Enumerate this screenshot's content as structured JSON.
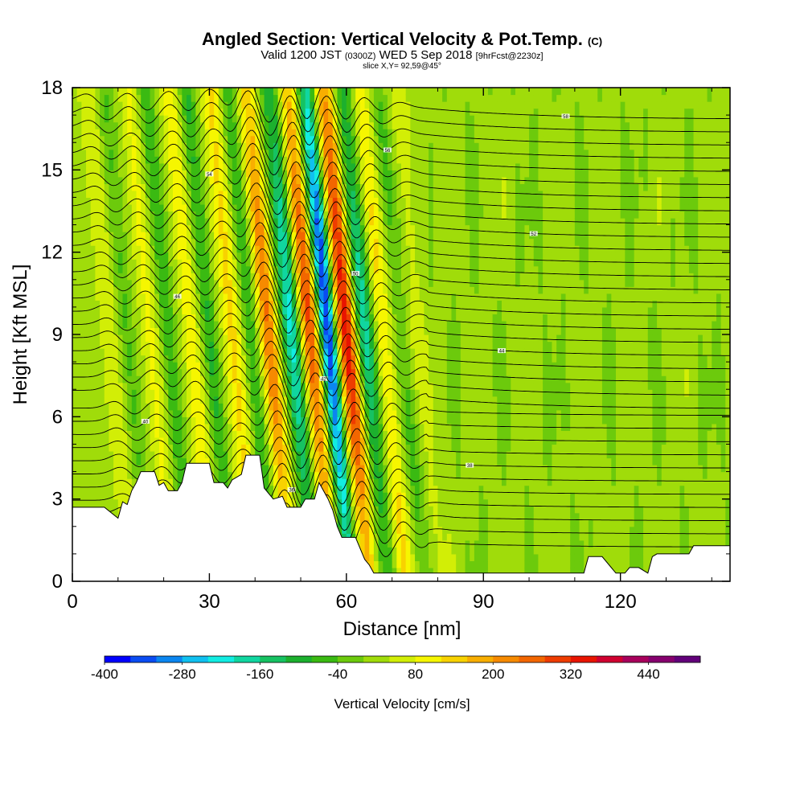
{
  "title": {
    "main": "Angled Section: Vertical Velocity & Pot.Temp.",
    "main_suffix": "(C)",
    "valid_prefix": "Valid 1200 JST",
    "valid_z": "(0300Z)",
    "valid_date": "WED 5 Sep 2018",
    "valid_fcst": "[9hrFcst@2230z]",
    "slice": "slice X,Y= 92,59@45°"
  },
  "chart_data": {
    "type": "heatmap",
    "title": "Angled Section: Vertical Velocity & Pot.Temp. (C)",
    "xlabel": "Distance [nm]",
    "ylabel": "Height [Kft MSL]",
    "xlim": [
      0,
      144
    ],
    "ylim": [
      0,
      18
    ],
    "x_ticks": [
      0,
      30,
      60,
      90,
      120
    ],
    "y_ticks": [
      0,
      3,
      6,
      9,
      12,
      15,
      18
    ],
    "colorbar": {
      "label": "Vertical Velocity [cm/s]",
      "tick_labels": [
        "-400",
        "-280",
        "-160",
        "-40",
        "80",
        "200",
        "320",
        "440"
      ],
      "tick_values": [
        -400,
        -280,
        -160,
        -40,
        80,
        200,
        320,
        440
      ],
      "bins": [
        -400,
        -360,
        -320,
        -280,
        -240,
        -200,
        -160,
        -120,
        -80,
        -40,
        0,
        40,
        80,
        120,
        160,
        200,
        240,
        280,
        320,
        360,
        400,
        440,
        480
      ],
      "colors": [
        "#0000ff",
        "#0a4cf2",
        "#0b86f0",
        "#10c0f0",
        "#12ece2",
        "#10d6a0",
        "#16c262",
        "#1cb02e",
        "#3aba12",
        "#6cca0c",
        "#a0dc0a",
        "#d2ee06",
        "#f6f600",
        "#f8d200",
        "#f8ae00",
        "#f68a00",
        "#f26600",
        "#ee3c00",
        "#e81400",
        "#d00030",
        "#a8005c",
        "#86006e",
        "#62007a"
      ]
    },
    "velocity_bands": [
      {
        "x": 8,
        "w": 1.8,
        "v": 60
      },
      {
        "x": 12,
        "w": 1.6,
        "v": -60
      },
      {
        "x": 17,
        "w": 1.8,
        "v": 70
      },
      {
        "x": 21,
        "w": 1.6,
        "v": -90
      },
      {
        "x": 26,
        "w": 1.8,
        "v": 90
      },
      {
        "x": 30,
        "w": 1.6,
        "v": -100
      },
      {
        "x": 35,
        "w": 2.0,
        "v": 110
      },
      {
        "x": 39,
        "w": 1.6,
        "v": -90
      },
      {
        "x": 43,
        "w": 1.9,
        "v": 230
      },
      {
        "x": 48,
        "w": 2.0,
        "v": -230
      },
      {
        "x": 52,
        "w": 2.0,
        "v": 270
      },
      {
        "x": 56,
        "w": 1.8,
        "v": -400
      },
      {
        "x": 60,
        "w": 2.2,
        "v": 330
      },
      {
        "x": 64,
        "w": 2.0,
        "v": -200
      },
      {
        "x": 68,
        "w": 1.8,
        "v": 100
      },
      {
        "x": 72,
        "w": 1.6,
        "v": -60
      },
      {
        "x": 76,
        "w": 1.8,
        "v": 40
      }
    ],
    "theta_contours": {
      "label_values": [
        "34",
        "36",
        "38",
        "40",
        "42",
        "44",
        "46",
        "48",
        "50",
        "52",
        "54",
        "56",
        "58"
      ],
      "count": 34,
      "base": 1.4,
      "spacing": 0.48,
      "wave_amplitude": 1.1
    },
    "terrain": [
      [
        0,
        2.7
      ],
      [
        7,
        2.7
      ],
      [
        10,
        2.3
      ],
      [
        11,
        2.9
      ],
      [
        12,
        2.8
      ],
      [
        13,
        3.3
      ],
      [
        14,
        3.6
      ],
      [
        15,
        4.0
      ],
      [
        18,
        4.0
      ],
      [
        19,
        3.5
      ],
      [
        20,
        3.6
      ],
      [
        21,
        3.3
      ],
      [
        23,
        3.3
      ],
      [
        24,
        3.6
      ],
      [
        25,
        4.3
      ],
      [
        30,
        4.3
      ],
      [
        31,
        3.6
      ],
      [
        33,
        3.6
      ],
      [
        34,
        3.4
      ],
      [
        35,
        3.7
      ],
      [
        37,
        3.9
      ],
      [
        38,
        4.6
      ],
      [
        41,
        4.6
      ],
      [
        42,
        3.4
      ],
      [
        44,
        3.0
      ],
      [
        46,
        3.1
      ],
      [
        47,
        2.7
      ],
      [
        50,
        2.7
      ],
      [
        51,
        3.0
      ],
      [
        53,
        3.0
      ],
      [
        54,
        3.6
      ],
      [
        56,
        3.0
      ],
      [
        57,
        2.6
      ],
      [
        58,
        2.0
      ],
      [
        59,
        1.6
      ],
      [
        62,
        1.6
      ],
      [
        63,
        1.2
      ],
      [
        64,
        0.8
      ],
      [
        65,
        0.6
      ],
      [
        66,
        0.3
      ],
      [
        90,
        0.3
      ],
      [
        112,
        0.3
      ],
      [
        113,
        0.9
      ],
      [
        116,
        0.9
      ],
      [
        119,
        0.3
      ],
      [
        121,
        0.3
      ],
      [
        122,
        0.5
      ],
      [
        124,
        0.5
      ],
      [
        126,
        0.3
      ],
      [
        127,
        0.9
      ],
      [
        128,
        1.0
      ],
      [
        135,
        1.0
      ],
      [
        136,
        1.3
      ],
      [
        144,
        1.3
      ]
    ]
  }
}
